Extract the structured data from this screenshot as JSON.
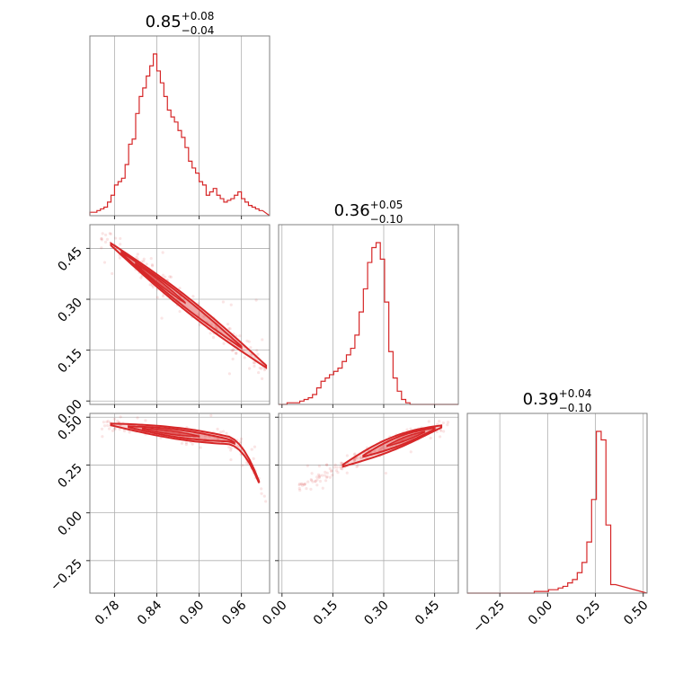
{
  "chart_data": {
    "type": "corner",
    "color": "#d62728",
    "parameters": [
      {
        "title_value": "0.85",
        "err_plus": "+0.08",
        "err_minus": "−0.04",
        "range": [
          0.745,
          1.0
        ],
        "ticks": [
          0.78,
          0.84,
          0.9,
          0.96
        ],
        "tick_labels": [
          "0.78",
          "0.84",
          "0.90",
          "0.96"
        ],
        "hist_bin_width": 0.005,
        "hist_counts": [
          2,
          2,
          3,
          4,
          5,
          8,
          12,
          18,
          20,
          22,
          30,
          42,
          45,
          60,
          70,
          75,
          82,
          88,
          95,
          85,
          78,
          70,
          62,
          58,
          55,
          50,
          46,
          40,
          32,
          28,
          25,
          20,
          18,
          12,
          14,
          16,
          12,
          10,
          8,
          9,
          10,
          12,
          14,
          10,
          8,
          6,
          5,
          4,
          3
        ]
      },
      {
        "title_value": "0.36",
        "err_plus": "+0.05",
        "err_minus": "−0.10",
        "range": [
          -0.01,
          0.52
        ],
        "ticks": [
          0.0,
          0.15,
          0.3,
          0.45
        ],
        "tick_labels": [
          "0.00",
          "0.15",
          "0.30",
          "0.45"
        ],
        "hist_bin_width": 0.0125,
        "hist_counts": [
          0,
          0,
          1,
          1,
          1,
          2,
          3,
          4,
          6,
          10,
          14,
          16,
          18,
          20,
          22,
          26,
          30,
          34,
          42,
          56,
          70,
          86,
          95,
          98,
          88,
          62,
          32,
          16,
          8,
          3,
          1,
          0
        ]
      },
      {
        "title_value": "0.39",
        "err_plus": "+0.04",
        "err_minus": "−0.10",
        "range": [
          -0.42,
          0.52
        ],
        "ticks": [
          -0.25,
          0.0,
          0.25,
          0.5
        ],
        "tick_labels": [
          "−0.25",
          "0.00",
          "0.25",
          "0.50"
        ],
        "hist_bin_width": 0.025,
        "hist_counts": [
          0,
          0,
          0,
          0,
          0,
          0,
          0,
          0,
          0,
          0,
          0,
          0,
          0,
          0,
          1,
          1,
          1,
          2,
          2,
          3,
          4,
          6,
          8,
          12,
          18,
          30,
          55,
          95,
          90,
          40,
          5
        ]
      }
    ],
    "grid": true
  }
}
